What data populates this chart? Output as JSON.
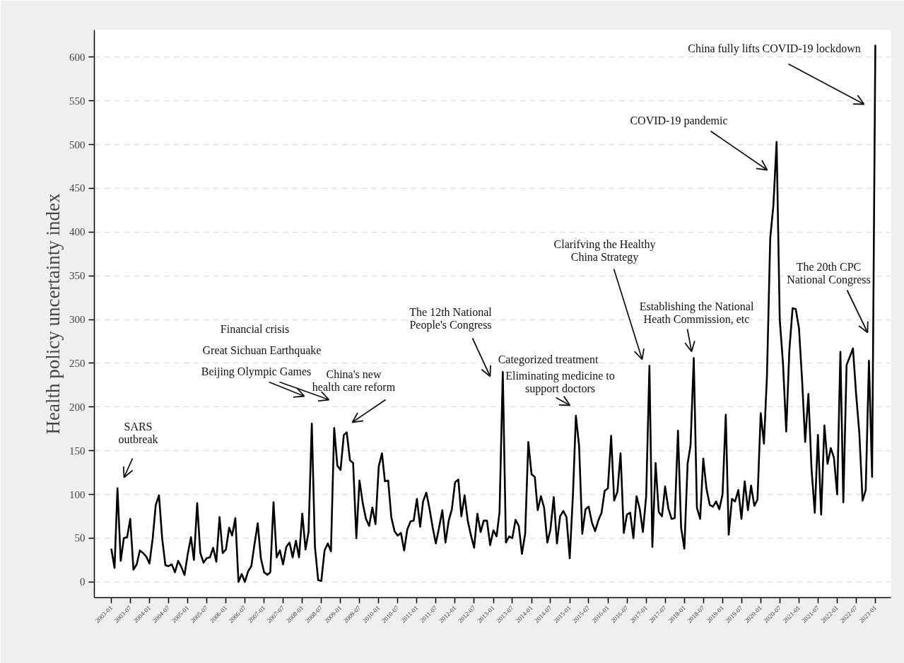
{
  "chart_data": {
    "type": "line",
    "ylabel": "Health policy uncertainty index",
    "xlim": [
      "2002-07-23",
      "2023-05-30"
    ],
    "ylim": [
      -18,
      631
    ],
    "yticks": [
      0,
      50,
      100,
      150,
      200,
      250,
      300,
      350,
      400,
      450,
      500,
      550,
      600
    ],
    "xticks": [
      "2003-01",
      "2003-07",
      "2004-01",
      "2004-07",
      "2005-01",
      "2005-07",
      "2006-01",
      "2006-07",
      "2007-01",
      "2007-07",
      "2008-01",
      "2008-07",
      "2009-01",
      "2009-07",
      "2010-01",
      "2010-07",
      "2011-01",
      "2011-07",
      "2012-01",
      "2012-07",
      "2013-01",
      "2013-07",
      "2014-01",
      "2014-07",
      "2015-01",
      "2015-07",
      "2016-01",
      "2016-07",
      "2017-01",
      "2017-07",
      "2018-01",
      "2018-07",
      "2019-01",
      "2019-07",
      "2020-01",
      "2020-07",
      "2021-01",
      "2021-07",
      "2022-01",
      "2022-07",
      "2023-01"
    ],
    "grid": "y",
    "x": [
      "2003-01",
      "2003-02",
      "2003-03",
      "2003-04",
      "2003-05",
      "2003-06",
      "2003-07",
      "2003-08",
      "2003-09",
      "2003-10",
      "2003-11",
      "2003-12",
      "2004-01",
      "2004-02",
      "2004-03",
      "2004-04",
      "2004-05",
      "2004-06",
      "2004-07",
      "2004-08",
      "2004-09",
      "2004-10",
      "2004-11",
      "2004-12",
      "2005-01",
      "2005-02",
      "2005-03",
      "2005-04",
      "2005-05",
      "2005-06",
      "2005-07",
      "2005-08",
      "2005-09",
      "2005-10",
      "2005-11",
      "2005-12",
      "2006-01",
      "2006-02",
      "2006-03",
      "2006-04",
      "2006-05",
      "2006-06",
      "2006-07",
      "2006-08",
      "2006-09",
      "2006-10",
      "2006-11",
      "2006-12",
      "2007-01",
      "2007-02",
      "2007-03",
      "2007-04",
      "2007-05",
      "2007-06",
      "2007-07",
      "2007-08",
      "2007-09",
      "2007-10",
      "2007-11",
      "2007-12",
      "2008-01",
      "2008-02",
      "2008-03",
      "2008-04",
      "2008-05",
      "2008-06",
      "2008-07",
      "2008-08",
      "2008-09",
      "2008-10",
      "2008-11",
      "2008-12",
      "2009-01",
      "2009-02",
      "2009-03",
      "2009-04",
      "2009-05",
      "2009-06",
      "2009-07",
      "2009-08",
      "2009-09",
      "2009-10",
      "2009-11",
      "2009-12",
      "2010-01",
      "2010-02",
      "2010-03",
      "2010-04",
      "2010-05",
      "2010-06",
      "2010-07",
      "2010-08",
      "2010-09",
      "2010-10",
      "2010-11",
      "2010-12",
      "2011-01",
      "2011-02",
      "2011-03",
      "2011-04",
      "2011-05",
      "2011-06",
      "2011-07",
      "2011-08",
      "2011-09",
      "2011-10",
      "2011-11",
      "2011-12",
      "2012-01",
      "2012-02",
      "2012-03",
      "2012-04",
      "2012-05",
      "2012-06",
      "2012-07",
      "2012-08",
      "2012-09",
      "2012-10",
      "2012-11",
      "2012-12",
      "2013-01",
      "2013-02",
      "2013-03",
      "2013-04",
      "2013-05",
      "2013-06",
      "2013-07",
      "2013-08",
      "2013-09",
      "2013-10",
      "2013-11",
      "2013-12",
      "2014-01",
      "2014-02",
      "2014-03",
      "2014-04",
      "2014-05",
      "2014-06",
      "2014-07",
      "2014-08",
      "2014-09",
      "2014-10",
      "2014-11",
      "2014-12",
      "2015-01",
      "2015-02",
      "2015-03",
      "2015-04",
      "2015-05",
      "2015-06",
      "2015-07",
      "2015-08",
      "2015-09",
      "2015-10",
      "2015-11",
      "2015-12",
      "2016-01",
      "2016-02",
      "2016-03",
      "2016-04",
      "2016-05",
      "2016-06",
      "2016-07",
      "2016-08",
      "2016-09",
      "2016-10",
      "2016-11",
      "2016-12",
      "2017-01",
      "2017-02",
      "2017-03",
      "2017-04",
      "2017-05",
      "2017-06",
      "2017-07",
      "2017-08",
      "2017-09",
      "2017-10",
      "2017-11",
      "2017-12",
      "2018-01",
      "2018-02",
      "2018-03",
      "2018-04",
      "2018-05",
      "2018-06",
      "2018-07",
      "2018-08",
      "2018-09",
      "2018-10",
      "2018-11",
      "2018-12",
      "2019-01",
      "2019-02",
      "2019-03",
      "2019-04",
      "2019-05",
      "2019-06",
      "2019-07",
      "2019-08",
      "2019-09",
      "2019-10",
      "2019-11",
      "2019-12",
      "2020-01",
      "2020-02",
      "2020-03",
      "2020-04",
      "2020-05",
      "2020-06",
      "2020-07",
      "2020-08",
      "2020-09",
      "2020-10",
      "2020-11",
      "2020-12",
      "2021-01",
      "2021-02",
      "2021-03",
      "2021-04",
      "2021-05",
      "2021-06",
      "2021-07",
      "2021-08",
      "2021-09",
      "2021-10",
      "2021-11",
      "2021-12",
      "2022-01",
      "2022-02",
      "2022-03",
      "2022-04",
      "2022-05",
      "2022-06",
      "2022-07",
      "2022-08",
      "2022-09",
      "2022-10",
      "2022-11",
      "2022-12",
      "2023-01"
    ],
    "series": [
      {
        "color": "#000000",
        "values": [
          38,
          16,
          107,
          24,
          50,
          51,
          72,
          14,
          20,
          36,
          33,
          29,
          21,
          50,
          88,
          99,
          50,
          19,
          18,
          20,
          11,
          24,
          17,
          8,
          32,
          51,
          25,
          90,
          33,
          22,
          27,
          28,
          39,
          23,
          74,
          33,
          37,
          62,
          53,
          73,
          0,
          9,
          0,
          12,
          18,
          43,
          67,
          27,
          11,
          8,
          11,
          91,
          28,
          36,
          20,
          40,
          45,
          28,
          47,
          28,
          78,
          37,
          57,
          181,
          40,
          2,
          1,
          36,
          44,
          35,
          176,
          133,
          128,
          168,
          171,
          139,
          136,
          50,
          116,
          90,
          72,
          64,
          85,
          66,
          132,
          147,
          115,
          116,
          74,
          58,
          53,
          56,
          36,
          60,
          69,
          70,
          95,
          63,
          92,
          102,
          84,
          62,
          44,
          62,
          82,
          45,
          70,
          83,
          114,
          117,
          75,
          99,
          70,
          53,
          39,
          78,
          57,
          70,
          70,
          42,
          59,
          52,
          80,
          240,
          45,
          52,
          50,
          71,
          64,
          32,
          55,
          160,
          123,
          120,
          82,
          98,
          85,
          45,
          60,
          97,
          44,
          75,
          81,
          74,
          27,
          100,
          190,
          155,
          55,
          83,
          86,
          68,
          58,
          70,
          79,
          104,
          107,
          167,
          93,
          103,
          147,
          56,
          77,
          79,
          50,
          98,
          83,
          57,
          98,
          247,
          40,
          136,
          80,
          75,
          109,
          84,
          72,
          73,
          173,
          62,
          38,
          135,
          156,
          256,
          85,
          72,
          141,
          106,
          88,
          86,
          92,
          83,
          100,
          191,
          54,
          95,
          92,
          105,
          72,
          115,
          82,
          110,
          87,
          94,
          193,
          158,
          236,
          393,
          430,
          503,
          300,
          250,
          172,
          265,
          313,
          312,
          290,
          228,
          160,
          215,
          129,
          79,
          168,
          77,
          179,
          135,
          153,
          142,
          100,
          263,
          91,
          248,
          257,
          267,
          215,
          170,
          93,
          105,
          253,
          120,
          614
        ]
      }
    ],
    "annotations": [
      "SARS\noutbreak",
      "Financial crisis",
      "Great Sichuan Earthquake",
      "Beijing Olympic Games",
      "China's new\nhealth care reform",
      "The 12th National\nPeople's Congress",
      "Categorized treatment",
      "Eliminating medicine to\nsupport doctors",
      "Clarifving the Healthy\nChina Strategy",
      "Establishing the National\nHeath Commission, etc",
      "The 20th CPC\nNational Congress",
      "COVID-19 pandemic",
      "China fully lifts COVID-19 lockdown"
    ]
  }
}
